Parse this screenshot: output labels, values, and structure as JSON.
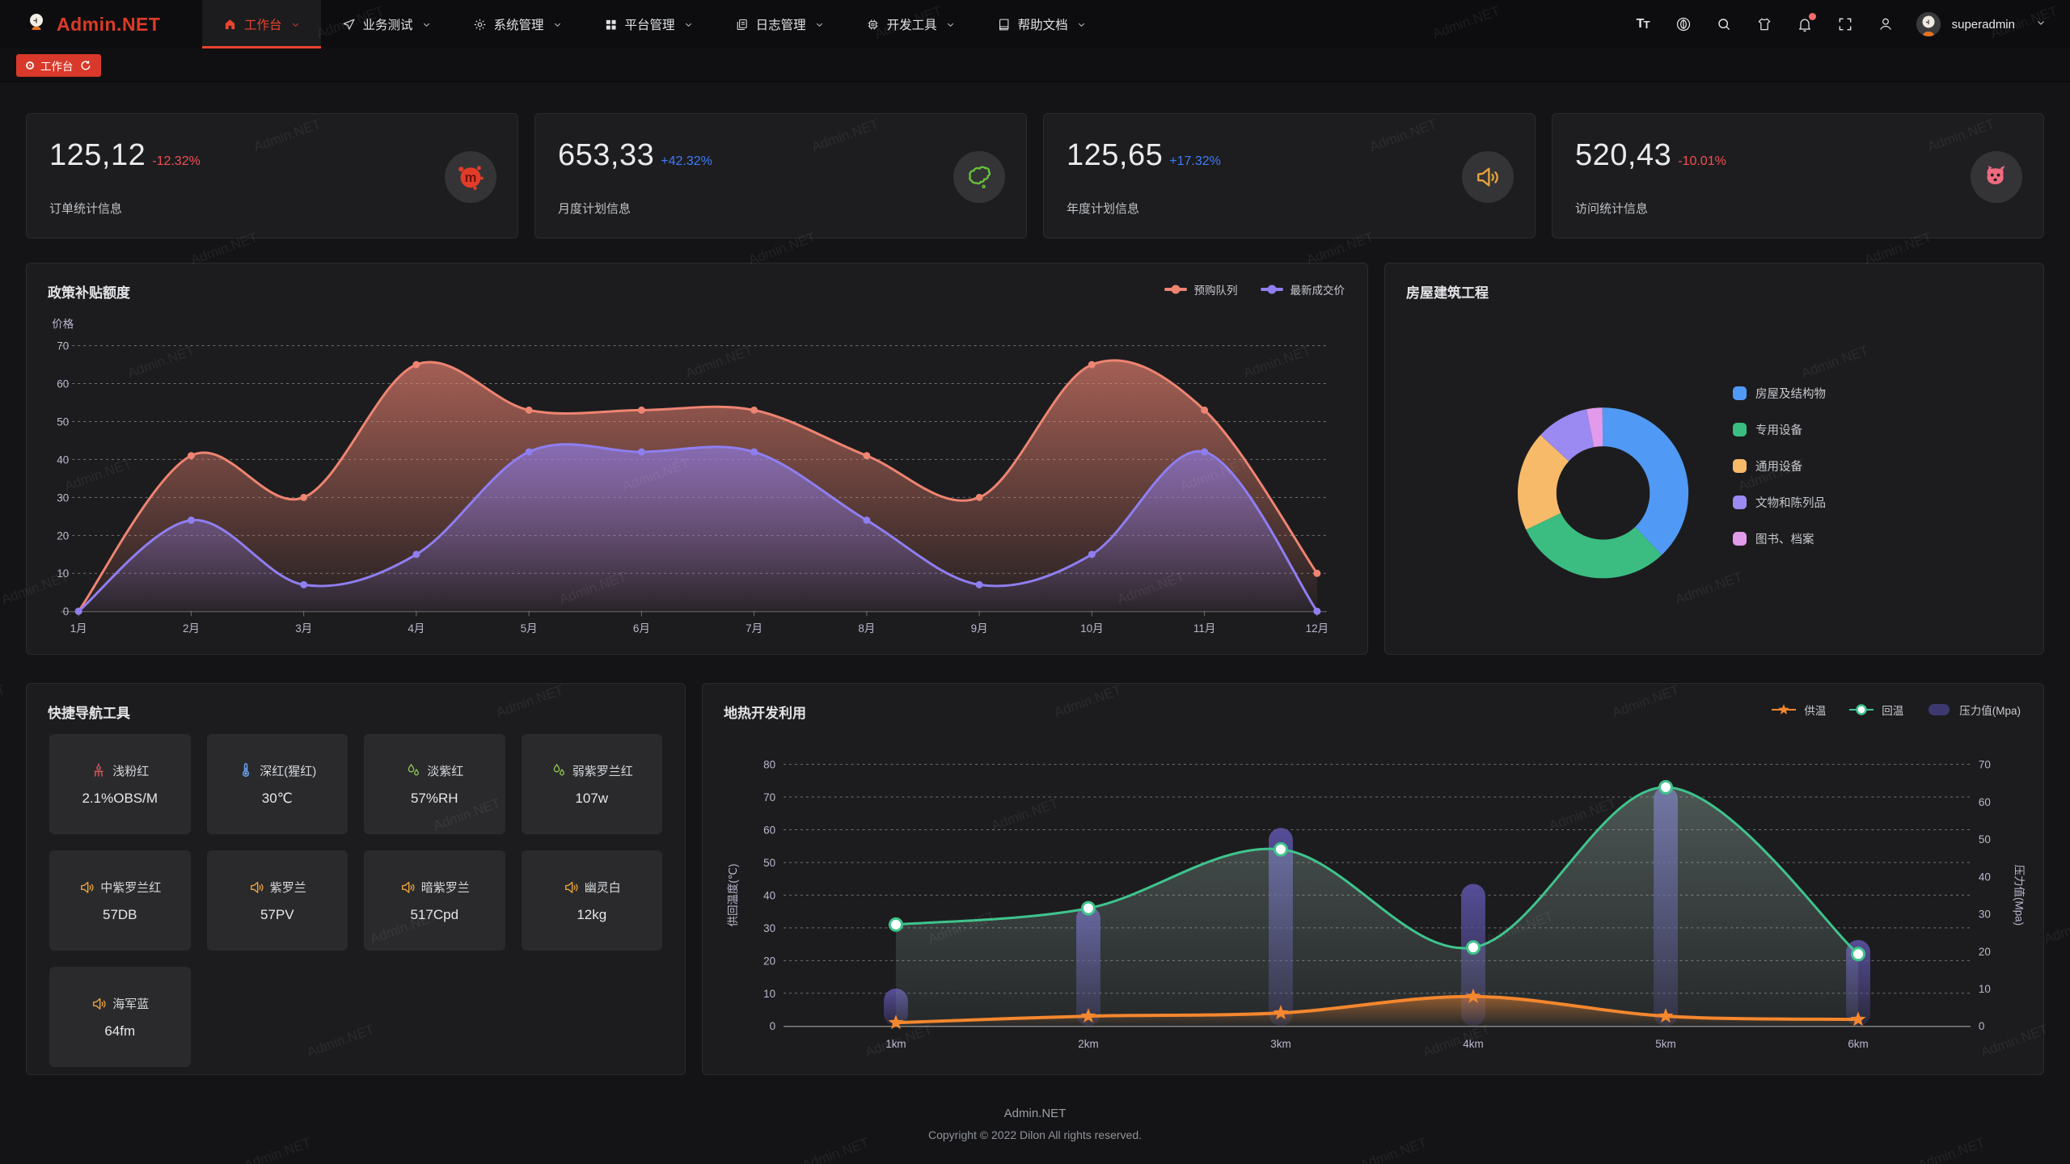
{
  "brand": {
    "name": "Admin.NET"
  },
  "nav": {
    "items": [
      {
        "label": "工作台",
        "icon": "home-icon",
        "active": true
      },
      {
        "label": "业务测试",
        "icon": "send-icon",
        "active": false
      },
      {
        "label": "系统管理",
        "icon": "gear-icon",
        "active": false
      },
      {
        "label": "平台管理",
        "icon": "grid-icon",
        "active": false
      },
      {
        "label": "日志管理",
        "icon": "log-icon",
        "active": false
      },
      {
        "label": "开发工具",
        "icon": "chip-icon",
        "active": false
      },
      {
        "label": "帮助文档",
        "icon": "book-icon",
        "active": false
      }
    ]
  },
  "topbar": {
    "user": "superadmin"
  },
  "tabbar": {
    "active_tab": "工作台"
  },
  "stats": [
    {
      "value": "125,12",
      "delta": "-12.32%",
      "trend": "down",
      "label": "订单统计信息",
      "icon": "meetup-icon",
      "icon_color": "#e23c28"
    },
    {
      "value": "653,33",
      "delta": "+42.32%",
      "trend": "up",
      "label": "月度计划信息",
      "icon": "china-map-icon",
      "icon_color": "#67c23a"
    },
    {
      "value": "125,65",
      "delta": "+17.32%",
      "trend": "up",
      "label": "年度计划信息",
      "icon": "speaker-icon",
      "icon_color": "#e6a23c"
    },
    {
      "value": "520,43",
      "delta": "-10.01%",
      "trend": "down",
      "label": "访问统计信息",
      "icon": "octocat-icon",
      "icon_color": "#ef6b7f"
    }
  ],
  "chart_data": [
    {
      "id": "policy",
      "type": "area",
      "title": "政策补贴额度",
      "ylabel": "价格",
      "categories": [
        "1月",
        "2月",
        "3月",
        "4月",
        "5月",
        "6月",
        "7月",
        "8月",
        "9月",
        "10月",
        "11月",
        "12月"
      ],
      "series": [
        {
          "name": "预购队列",
          "color": "#ee8472",
          "values": [
            0,
            41,
            30,
            65,
            53,
            53,
            53,
            41,
            30,
            65,
            53,
            10
          ]
        },
        {
          "name": "最新成交价",
          "color": "#8f7ef0",
          "values": [
            0,
            24,
            7,
            15,
            42,
            42,
            42,
            24,
            7,
            15,
            42,
            0
          ]
        }
      ],
      "ylim": [
        0,
        70
      ],
      "ytick_step": 10,
      "grid": "dashed",
      "legend_position": "top-right"
    },
    {
      "id": "building",
      "type": "pie",
      "title": "房屋建筑工程",
      "donut": true,
      "slices": [
        {
          "name": "房屋及结构物",
          "value": 38,
          "color": "#509af5"
        },
        {
          "name": "专用设备",
          "value": 30,
          "color": "#3bbd82"
        },
        {
          "name": "通用设备",
          "value": 19,
          "color": "#f7ba69"
        },
        {
          "name": "文物和陈列品",
          "value": 10,
          "color": "#9a8af2"
        },
        {
          "name": "图书、档案",
          "value": 3,
          "color": "#e19bea"
        }
      ],
      "legend_position": "right"
    },
    {
      "id": "geothermal",
      "type": "mixed",
      "title": "地热开发利用",
      "categories": [
        "1km",
        "2km",
        "3km",
        "4km",
        "5km",
        "6km"
      ],
      "left_axis": {
        "label": "供回温度(℃)",
        "min": 0,
        "max": 80,
        "step": 10
      },
      "right_axis": {
        "label": "压力值(Mpa)",
        "min": 0,
        "max": 70,
        "step": 10
      },
      "series": [
        {
          "name": "供温",
          "type": "line",
          "marker": "star",
          "color": "#f5872e",
          "axis": "left",
          "values": [
            1,
            3,
            4,
            9,
            3,
            2
          ]
        },
        {
          "name": "回温",
          "type": "line",
          "marker": "circle",
          "color": "#3fc48d",
          "axis": "left",
          "values": [
            31,
            36,
            54,
            24,
            73,
            22
          ]
        },
        {
          "name": "压力值(Mpa)",
          "type": "bar",
          "color": "#45407a",
          "axis": "right",
          "values": [
            10,
            32,
            53,
            38,
            64,
            23
          ]
        }
      ],
      "grid": "dashed"
    }
  ],
  "quick_nav": {
    "title": "快捷导航工具",
    "items": [
      {
        "name": "浅粉红",
        "value": "2.1%OBS/M",
        "icon": "heat-icon",
        "icon_color": "#e85f5f"
      },
      {
        "name": "深红(猩红)",
        "value": "30℃",
        "icon": "thermometer-icon",
        "icon_color": "#6ea8f7"
      },
      {
        "name": "淡紫红",
        "value": "57%RH",
        "icon": "humidity-icon",
        "icon_color": "#8fc74f"
      },
      {
        "name": "弱紫罗兰红",
        "value": "107w",
        "icon": "humidity-icon",
        "icon_color": "#8fc74f"
      },
      {
        "name": "中紫罗兰红",
        "value": "57DB",
        "icon": "speaker-icon",
        "icon_color": "#e6a23c"
      },
      {
        "name": "紫罗兰",
        "value": "57PV",
        "icon": "speaker-icon",
        "icon_color": "#e6a23c"
      },
      {
        "name": "暗紫罗兰",
        "value": "517Cpd",
        "icon": "speaker-icon",
        "icon_color": "#e6a23c"
      },
      {
        "name": "幽灵白",
        "value": "12kg",
        "icon": "speaker-icon",
        "icon_color": "#e6a23c"
      },
      {
        "name": "海军蓝",
        "value": "64fm",
        "icon": "speaker-icon",
        "icon_color": "#e6a23c"
      }
    ]
  },
  "footer": {
    "line1": "Admin.NET",
    "line2": "Copyright © 2022 Dilon All rights reserved."
  },
  "watermark": "Admin.NET",
  "colors": {
    "accent_red": "#d9392a",
    "up_blue": "#3e7bfa",
    "down_red": "#f25050"
  }
}
